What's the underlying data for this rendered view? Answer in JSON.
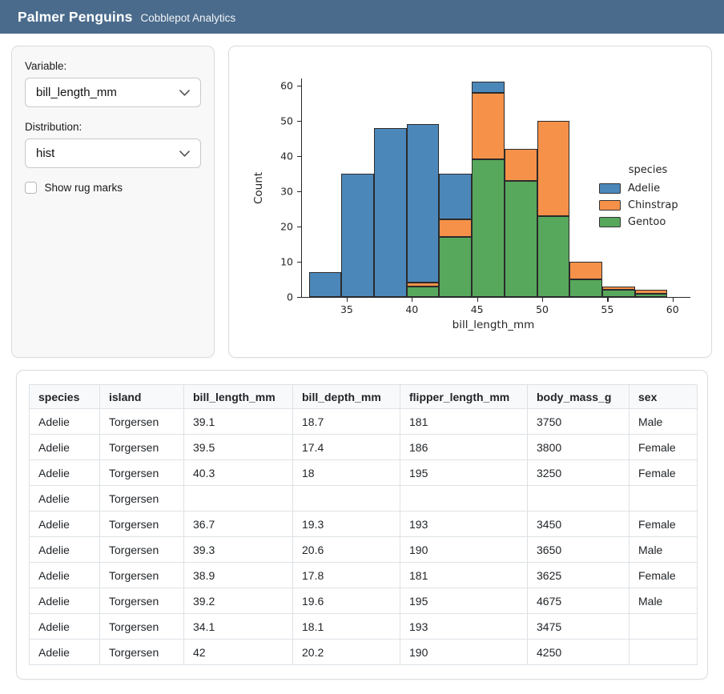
{
  "header": {
    "title": "Palmer Penguins",
    "subtitle": "Cobblepot Analytics"
  },
  "sidebar": {
    "variable_label": "Variable:",
    "variable_value": "bill_length_mm",
    "distribution_label": "Distribution:",
    "distribution_value": "hist",
    "rug_label": "Show rug marks",
    "rug_checked": false
  },
  "chart_data": {
    "type": "bar",
    "subtype": "stacked-histogram",
    "title": "",
    "xlabel": "bill_length_mm",
    "ylabel": "Count",
    "xlim": [
      31.5,
      61.0
    ],
    "ylim": [
      0,
      62
    ],
    "x_ticks": [
      35,
      40,
      45,
      50,
      55,
      60
    ],
    "y_ticks": [
      0,
      10,
      20,
      30,
      40,
      50,
      60
    ],
    "grid": false,
    "bin_edges": [
      32.1,
      34.6,
      37.1,
      39.6,
      42.1,
      44.6,
      47.1,
      49.6,
      52.1,
      54.6,
      57.1,
      59.6
    ],
    "stack_order_bottom_to_top": [
      "Gentoo",
      "Chinstrap",
      "Adelie"
    ],
    "series": [
      {
        "name": "Gentoo",
        "color": "#57a85c",
        "values": [
          0,
          0,
          0,
          3,
          17,
          39,
          33,
          23,
          5,
          2,
          1
        ]
      },
      {
        "name": "Chinstrap",
        "color": "#f6914a",
        "values": [
          0,
          0,
          0,
          1,
          5,
          19,
          9,
          27,
          5,
          1,
          1
        ]
      },
      {
        "name": "Adelie",
        "color": "#4c87b9",
        "values": [
          7,
          35,
          48,
          45,
          13,
          3,
          0,
          0,
          0,
          0,
          0
        ]
      }
    ],
    "bar_totals": [
      7,
      35,
      48,
      49,
      35,
      61,
      42,
      50,
      10,
      3,
      2
    ],
    "bar_edge_color": "#2b2b2b",
    "legend": {
      "title": "species",
      "position": "right",
      "entries": [
        {
          "label": "Adelie",
          "color": "#4c87b9"
        },
        {
          "label": "Chinstrap",
          "color": "#f6914a"
        },
        {
          "label": "Gentoo",
          "color": "#57a85c"
        }
      ]
    }
  },
  "table": {
    "columns": [
      "species",
      "island",
      "bill_length_mm",
      "bill_depth_mm",
      "flipper_length_mm",
      "body_mass_g",
      "sex"
    ],
    "rows": [
      [
        "Adelie",
        "Torgersen",
        "39.1",
        "18.7",
        "181",
        "3750",
        "Male"
      ],
      [
        "Adelie",
        "Torgersen",
        "39.5",
        "17.4",
        "186",
        "3800",
        "Female"
      ],
      [
        "Adelie",
        "Torgersen",
        "40.3",
        "18",
        "195",
        "3250",
        "Female"
      ],
      [
        "Adelie",
        "Torgersen",
        "",
        "",
        "",
        "",
        ""
      ],
      [
        "Adelie",
        "Torgersen",
        "36.7",
        "19.3",
        "193",
        "3450",
        "Female"
      ],
      [
        "Adelie",
        "Torgersen",
        "39.3",
        "20.6",
        "190",
        "3650",
        "Male"
      ],
      [
        "Adelie",
        "Torgersen",
        "38.9",
        "17.8",
        "181",
        "3625",
        "Female"
      ],
      [
        "Adelie",
        "Torgersen",
        "39.2",
        "19.6",
        "195",
        "4675",
        "Male"
      ],
      [
        "Adelie",
        "Torgersen",
        "34.1",
        "18.1",
        "193",
        "3475",
        ""
      ],
      [
        "Adelie",
        "Torgersen",
        "42",
        "20.2",
        "190",
        "4250",
        ""
      ]
    ]
  },
  "colors": {
    "header_bg": "#4a6b8c",
    "sidebar_bg": "#f8f8f8",
    "card_border": "#dcdcdc",
    "table_border": "#dee2e6",
    "table_header_bg": "#f8f9fa"
  }
}
